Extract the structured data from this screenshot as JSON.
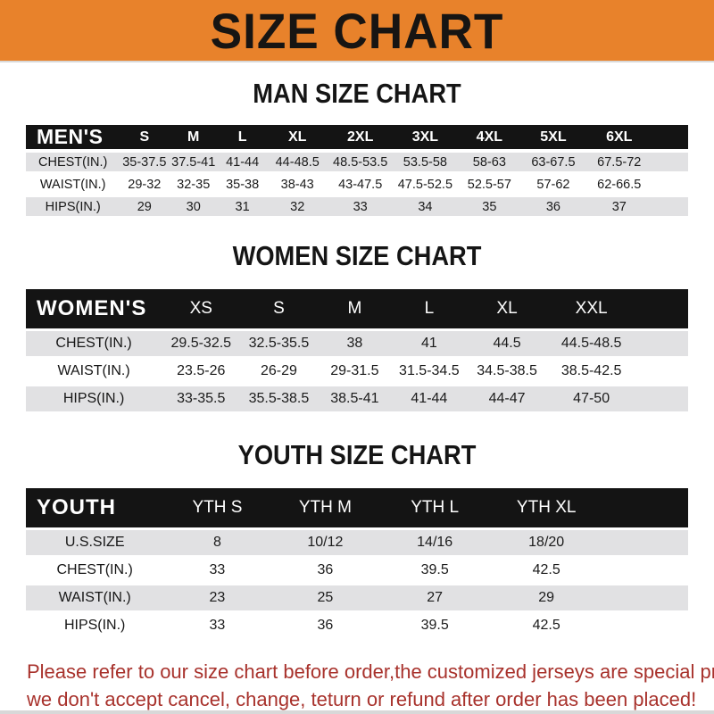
{
  "banner": {
    "title": "SIZE CHART",
    "bg_color": "#E8822B",
    "text_color": "#171513"
  },
  "sections": [
    {
      "id": "men",
      "heading": "MAN SIZE CHART",
      "table": {
        "header_label": "MEN'S",
        "columns": [
          "S",
          "M",
          "L",
          "XL",
          "2XL",
          "3XL",
          "4XL",
          "5XL",
          "6XL"
        ],
        "rows": [
          {
            "label": "CHEST(IN.)",
            "values": [
              "35-37.5",
              "37.5-41",
              "41-44",
              "44-48.5",
              "48.5-53.5",
              "53.5-58",
              "58-63",
              "63-67.5",
              "67.5-72"
            ]
          },
          {
            "label": "WAIST(IN.)",
            "values": [
              "29-32",
              "32-35",
              "35-38",
              "38-43",
              "43-47.5",
              "47.5-52.5",
              "52.5-57",
              "57-62",
              "62-66.5"
            ]
          },
          {
            "label": "HIPS(IN.)",
            "values": [
              "29",
              "30",
              "31",
              "32",
              "33",
              "34",
              "35",
              "36",
              "37"
            ]
          }
        ]
      }
    },
    {
      "id": "women",
      "heading": "WOMEN SIZE CHART",
      "table": {
        "header_label": "WOMEN'S",
        "columns": [
          "XS",
          "S",
          "M",
          "L",
          "XL",
          "XXL"
        ],
        "rows": [
          {
            "label": "CHEST(IN.)",
            "values": [
              "29.5-32.5",
              "32.5-35.5",
              "38",
              "41",
              "44.5",
              "44.5-48.5"
            ]
          },
          {
            "label": "WAIST(IN.)",
            "values": [
              "23.5-26",
              "26-29",
              "29-31.5",
              "31.5-34.5",
              "34.5-38.5",
              "38.5-42.5"
            ]
          },
          {
            "label": "HIPS(IN.)",
            "values": [
              "33-35.5",
              "35.5-38.5",
              "38.5-41",
              "41-44",
              "44-47",
              "47-50"
            ]
          }
        ]
      }
    },
    {
      "id": "youth",
      "heading": "YOUTH SIZE CHART",
      "table": {
        "header_label": "YOUTH",
        "columns": [
          "YTH S",
          "YTH M",
          "YTH L",
          "YTH XL"
        ],
        "rows": [
          {
            "label": "U.S.SIZE",
            "values": [
              "8",
              "10/12",
              "14/16",
              "18/20"
            ]
          },
          {
            "label": "CHEST(IN.)",
            "values": [
              "33",
              "36",
              "39.5",
              "42.5"
            ]
          },
          {
            "label": "WAIST(IN.)",
            "values": [
              "23",
              "25",
              "27",
              "29"
            ]
          },
          {
            "label": "HIPS(IN.)",
            "values": [
              "33",
              "36",
              "39.5",
              "42.5"
            ]
          }
        ]
      }
    }
  ],
  "footer": {
    "lines": [
      "Please refer to our size chart before order,the customized jerseys are special products,",
      "we don't accept cancel, change, teturn or refund after order has been placed!"
    ],
    "text_color": "#A8322C"
  },
  "colors": {
    "banner_orange": "#E8822B",
    "table_header_black": "#141414",
    "stripe_gray": "#E1E1E3",
    "footer_red": "#A8322C"
  }
}
